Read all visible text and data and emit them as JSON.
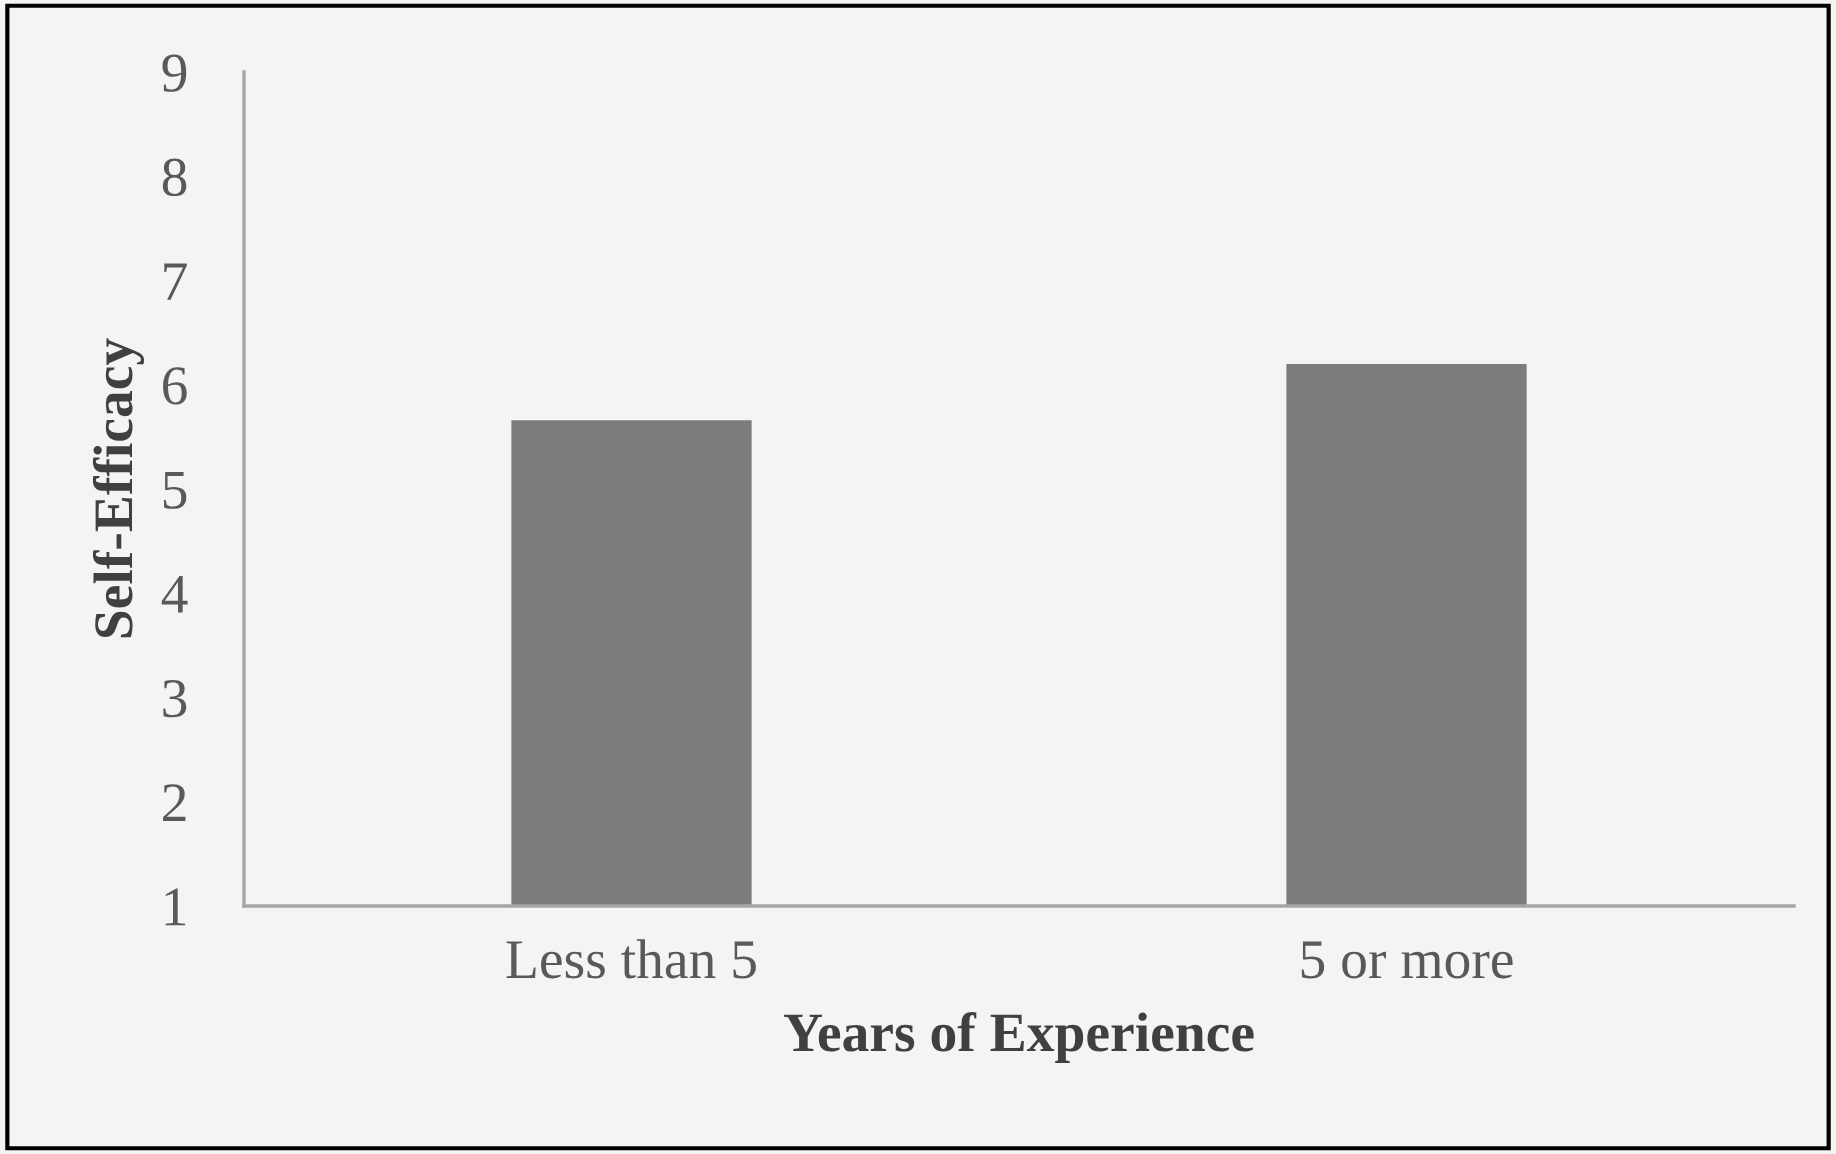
{
  "chart_data": {
    "type": "bar",
    "xlabel": "Years of Experience",
    "ylabel": "Self-Efficacy",
    "categories": [
      "Less than 5",
      "5 or more"
    ],
    "values": [
      5.66,
      6.2
    ],
    "color": "#7b7c7e",
    "ylim": [
      1,
      9
    ],
    "yticks": [
      1,
      2,
      3,
      4,
      5,
      6,
      7,
      8,
      9
    ],
    "grid": false,
    "legend": false
  }
}
